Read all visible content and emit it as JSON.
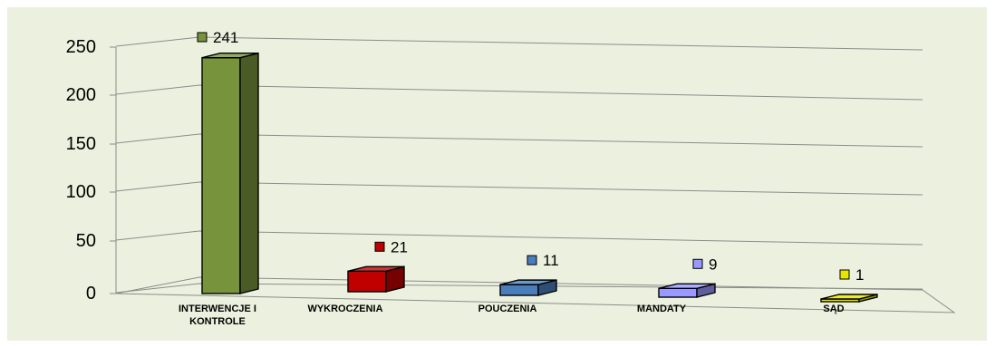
{
  "chart_data": {
    "type": "bar",
    "style": "3d-column",
    "categories": [
      "INTERWENCJE I KONTROLE",
      "WYKROCZENIA",
      "POUCZENIA",
      "MANDATY",
      "SĄD"
    ],
    "category_lines": [
      [
        "INTERWENCJE I",
        "KONTROLE"
      ],
      [
        "WYKROCZENIA"
      ],
      [
        "POUCZENIA"
      ],
      [
        "MANDATY"
      ],
      [
        "SĄD"
      ]
    ],
    "values": [
      241,
      21,
      11,
      9,
      1
    ],
    "value_labels": [
      "241",
      "21",
      "11",
      "9",
      "1"
    ],
    "colors": [
      "#77933c",
      "#c00000",
      "#4a7ebb",
      "#9999ff",
      "#e6e600"
    ],
    "y_ticks": [
      "0",
      "50",
      "100",
      "150",
      "200",
      "250"
    ],
    "ylim": [
      0,
      250
    ],
    "grid": true,
    "title": "",
    "xlabel": "",
    "ylabel": ""
  }
}
